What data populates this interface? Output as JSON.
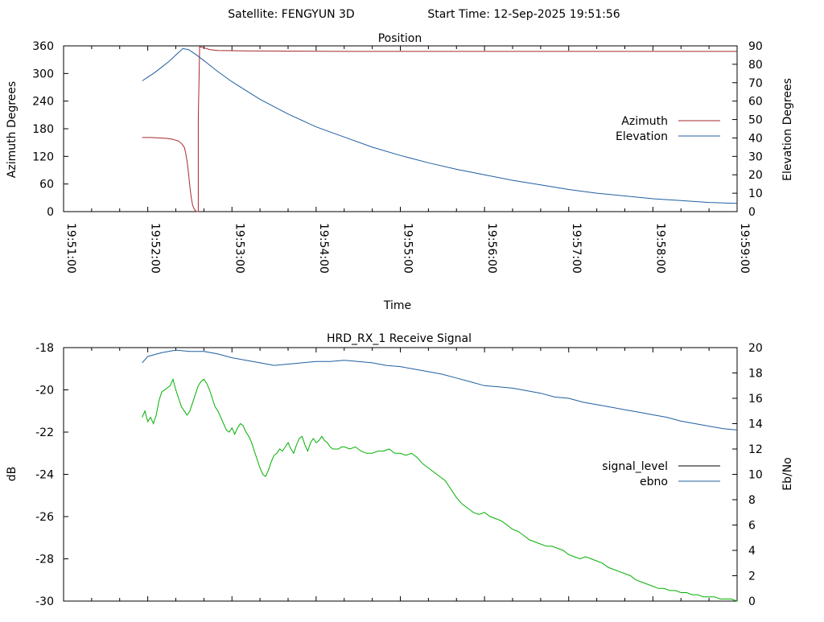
{
  "header": {
    "satellite_label": "Satellite: FENGYUN 3D",
    "start_time_label": "Start Time: 12-Sep-2025 19:51:56"
  },
  "chart_data": [
    {
      "type": "line",
      "title": "Position",
      "xlabel": "Time",
      "ylabel": "Azimuth Degrees",
      "y2label": "Elevation Degrees",
      "x_ticks": [
        "19:51:00",
        "19:52:00",
        "19:53:00",
        "19:54:00",
        "19:55:00",
        "19:56:00",
        "19:57:00",
        "19:58:00",
        "19:59:00"
      ],
      "xlim_seconds_from_19_51_00": [
        0,
        480
      ],
      "ylim": [
        0,
        360
      ],
      "y_ticks": [
        0,
        60,
        120,
        180,
        240,
        300,
        360
      ],
      "y2lim": [
        0,
        90
      ],
      "y2_ticks": [
        0,
        10,
        20,
        30,
        40,
        50,
        60,
        70,
        80,
        90
      ],
      "legend_position": "right",
      "series": [
        {
          "name": "Azimuth",
          "axis": "y",
          "color": "#a52a2a",
          "points": [
            [
              56,
              161
            ],
            [
              62,
              161
            ],
            [
              68,
              160
            ],
            [
              74,
              159
            ],
            [
              78,
              157
            ],
            [
              82,
              153
            ],
            [
              84,
              148
            ],
            [
              86,
              140
            ],
            [
              87,
              128
            ],
            [
              88,
              110
            ],
            [
              89,
              85
            ],
            [
              90,
              55
            ],
            [
              91,
              30
            ],
            [
              92,
              14
            ],
            [
              93,
              6
            ],
            [
              94,
              2
            ],
            [
              95,
              0
            ],
            [
              96,
              0
            ],
            [
              96,
              200
            ],
            [
              97,
              358
            ],
            [
              100,
              356
            ],
            [
              104,
              352
            ],
            [
              110,
              350
            ],
            [
              130,
              349
            ],
            [
              200,
              348
            ],
            [
              300,
              348
            ],
            [
              400,
              348
            ],
            [
              480,
              348
            ]
          ]
        },
        {
          "name": "Elevation",
          "axis": "y2",
          "color": "#1f5f9f",
          "points": [
            [
              56,
              71
            ],
            [
              60,
              73
            ],
            [
              65,
              75.5
            ],
            [
              70,
              78.5
            ],
            [
              75,
              81.5
            ],
            [
              80,
              85
            ],
            [
              85,
              88.5
            ],
            [
              89,
              88
            ],
            [
              94,
              85.5
            ],
            [
              100,
              82
            ],
            [
              110,
              76
            ],
            [
              120,
              70.5
            ],
            [
              140,
              61
            ],
            [
              160,
              53
            ],
            [
              180,
              46
            ],
            [
              200,
              40.5
            ],
            [
              220,
              35
            ],
            [
              240,
              30.5
            ],
            [
              260,
              26.5
            ],
            [
              280,
              23
            ],
            [
              300,
              20
            ],
            [
              320,
              17
            ],
            [
              340,
              14.5
            ],
            [
              360,
              12
            ],
            [
              380,
              10
            ],
            [
              400,
              8.5
            ],
            [
              420,
              7
            ],
            [
              440,
              6
            ],
            [
              460,
              5
            ],
            [
              480,
              4.5
            ]
          ]
        }
      ]
    },
    {
      "type": "line",
      "title": "HRD_RX_1 Receive Signal",
      "ylabel": "dB",
      "y2label": "Eb/No",
      "xlim_seconds_from_19_51_00": [
        0,
        480
      ],
      "ylim": [
        -30,
        -18
      ],
      "y_ticks": [
        -30,
        -28,
        -26,
        -24,
        -22,
        -20,
        -18
      ],
      "y2lim": [
        0,
        20
      ],
      "y2_ticks": [
        0,
        2,
        4,
        6,
        8,
        10,
        12,
        14,
        16,
        18,
        20
      ],
      "legend_position": "right",
      "series": [
        {
          "name": "signal_level",
          "axis": "y",
          "color": "#000000",
          "points": []
        },
        {
          "name": "ebno",
          "axis": "y2",
          "color": "#1f5f9f",
          "points": [
            [
              56,
              18.8
            ],
            [
              60,
              19.3
            ],
            [
              70,
              19.6
            ],
            [
              80,
              19.8
            ],
            [
              90,
              19.7
            ],
            [
              100,
              19.7
            ],
            [
              110,
              19.5
            ],
            [
              120,
              19.2
            ],
            [
              130,
              19.0
            ],
            [
              140,
              18.8
            ],
            [
              150,
              18.6
            ],
            [
              160,
              18.7
            ],
            [
              170,
              18.8
            ],
            [
              180,
              18.9
            ],
            [
              190,
              18.9
            ],
            [
              200,
              19.0
            ],
            [
              210,
              18.9
            ],
            [
              220,
              18.8
            ],
            [
              230,
              18.6
            ],
            [
              240,
              18.5
            ],
            [
              250,
              18.3
            ],
            [
              260,
              18.1
            ],
            [
              270,
              17.9
            ],
            [
              280,
              17.6
            ],
            [
              290,
              17.3
            ],
            [
              300,
              17.0
            ],
            [
              310,
              16.9
            ],
            [
              320,
              16.8
            ],
            [
              330,
              16.6
            ],
            [
              340,
              16.4
            ],
            [
              350,
              16.1
            ],
            [
              360,
              16.0
            ],
            [
              370,
              15.7
            ],
            [
              380,
              15.5
            ],
            [
              390,
              15.3
            ],
            [
              400,
              15.1
            ],
            [
              410,
              14.9
            ],
            [
              420,
              14.7
            ],
            [
              430,
              14.5
            ],
            [
              440,
              14.2
            ],
            [
              450,
              14.0
            ],
            [
              460,
              13.8
            ],
            [
              470,
              13.6
            ],
            [
              480,
              13.5
            ]
          ]
        },
        {
          "name": "",
          "axis": "y",
          "color": "#00b000",
          "points": [
            [
              56,
              -21.3
            ],
            [
              58,
              -21.0
            ],
            [
              60,
              -21.5
            ],
            [
              62,
              -21.3
            ],
            [
              64,
              -21.6
            ],
            [
              66,
              -21.2
            ],
            [
              68,
              -20.5
            ],
            [
              70,
              -20.1
            ],
            [
              72,
              -20.0
            ],
            [
              74,
              -19.9
            ],
            [
              76,
              -19.8
            ],
            [
              78,
              -19.5
            ],
            [
              80,
              -20.0
            ],
            [
              82,
              -20.4
            ],
            [
              84,
              -20.8
            ],
            [
              86,
              -21.0
            ],
            [
              88,
              -21.2
            ],
            [
              90,
              -21.0
            ],
            [
              92,
              -20.6
            ],
            [
              94,
              -20.2
            ],
            [
              96,
              -19.8
            ],
            [
              98,
              -19.6
            ],
            [
              100,
              -19.5
            ],
            [
              102,
              -19.7
            ],
            [
              104,
              -20.0
            ],
            [
              106,
              -20.4
            ],
            [
              108,
              -20.8
            ],
            [
              110,
              -21.0
            ],
            [
              112,
              -21.3
            ],
            [
              114,
              -21.6
            ],
            [
              116,
              -21.9
            ],
            [
              118,
              -22.0
            ],
            [
              120,
              -21.8
            ],
            [
              122,
              -22.1
            ],
            [
              124,
              -21.8
            ],
            [
              126,
              -21.6
            ],
            [
              128,
              -21.7
            ],
            [
              130,
              -22.0
            ],
            [
              132,
              -22.2
            ],
            [
              134,
              -22.5
            ],
            [
              136,
              -22.9
            ],
            [
              138,
              -23.3
            ],
            [
              140,
              -23.7
            ],
            [
              142,
              -24.0
            ],
            [
              144,
              -24.1
            ],
            [
              146,
              -23.8
            ],
            [
              148,
              -23.4
            ],
            [
              150,
              -23.1
            ],
            [
              152,
              -23.0
            ],
            [
              154,
              -22.8
            ],
            [
              156,
              -22.9
            ],
            [
              158,
              -22.7
            ],
            [
              160,
              -22.5
            ],
            [
              162,
              -22.8
            ],
            [
              164,
              -23.0
            ],
            [
              166,
              -22.6
            ],
            [
              168,
              -22.3
            ],
            [
              170,
              -22.2
            ],
            [
              172,
              -22.6
            ],
            [
              174,
              -22.9
            ],
            [
              176,
              -22.5
            ],
            [
              178,
              -22.3
            ],
            [
              180,
              -22.5
            ],
            [
              182,
              -22.4
            ],
            [
              184,
              -22.2
            ],
            [
              186,
              -22.4
            ],
            [
              188,
              -22.5
            ],
            [
              190,
              -22.7
            ],
            [
              192,
              -22.8
            ],
            [
              194,
              -22.8
            ],
            [
              196,
              -22.8
            ],
            [
              198,
              -22.7
            ],
            [
              200,
              -22.7
            ],
            [
              204,
              -22.8
            ],
            [
              208,
              -22.7
            ],
            [
              212,
              -22.9
            ],
            [
              216,
              -23.0
            ],
            [
              220,
              -23.0
            ],
            [
              224,
              -22.9
            ],
            [
              228,
              -22.9
            ],
            [
              232,
              -22.8
            ],
            [
              236,
              -23.0
            ],
            [
              240,
              -23.0
            ],
            [
              244,
              -23.1
            ],
            [
              248,
              -23.0
            ],
            [
              252,
              -23.2
            ],
            [
              256,
              -23.5
            ],
            [
              260,
              -23.7
            ],
            [
              264,
              -23.9
            ],
            [
              268,
              -24.1
            ],
            [
              272,
              -24.3
            ],
            [
              276,
              -24.7
            ],
            [
              280,
              -25.1
            ],
            [
              284,
              -25.4
            ],
            [
              288,
              -25.6
            ],
            [
              292,
              -25.8
            ],
            [
              296,
              -25.9
            ],
            [
              300,
              -25.8
            ],
            [
              304,
              -26.0
            ],
            [
              308,
              -26.1
            ],
            [
              312,
              -26.2
            ],
            [
              316,
              -26.4
            ],
            [
              320,
              -26.6
            ],
            [
              324,
              -26.7
            ],
            [
              328,
              -26.9
            ],
            [
              332,
              -27.1
            ],
            [
              336,
              -27.2
            ],
            [
              340,
              -27.3
            ],
            [
              344,
              -27.4
            ],
            [
              348,
              -27.4
            ],
            [
              352,
              -27.5
            ],
            [
              356,
              -27.6
            ],
            [
              360,
              -27.8
            ],
            [
              364,
              -27.9
            ],
            [
              368,
              -28.0
            ],
            [
              372,
              -27.9
            ],
            [
              376,
              -28.0
            ],
            [
              380,
              -28.1
            ],
            [
              384,
              -28.2
            ],
            [
              388,
              -28.4
            ],
            [
              392,
              -28.5
            ],
            [
              396,
              -28.6
            ],
            [
              400,
              -28.7
            ],
            [
              404,
              -28.8
            ],
            [
              408,
              -29.0
            ],
            [
              412,
              -29.1
            ],
            [
              416,
              -29.2
            ],
            [
              420,
              -29.3
            ],
            [
              424,
              -29.4
            ],
            [
              428,
              -29.4
            ],
            [
              432,
              -29.5
            ],
            [
              436,
              -29.5
            ],
            [
              440,
              -29.6
            ],
            [
              444,
              -29.6
            ],
            [
              448,
              -29.7
            ],
            [
              452,
              -29.7
            ],
            [
              456,
              -29.8
            ],
            [
              460,
              -29.8
            ],
            [
              464,
              -29.8
            ],
            [
              468,
              -29.9
            ],
            [
              472,
              -29.9
            ],
            [
              476,
              -29.9
            ],
            [
              480,
              -30.0
            ]
          ]
        }
      ]
    }
  ]
}
